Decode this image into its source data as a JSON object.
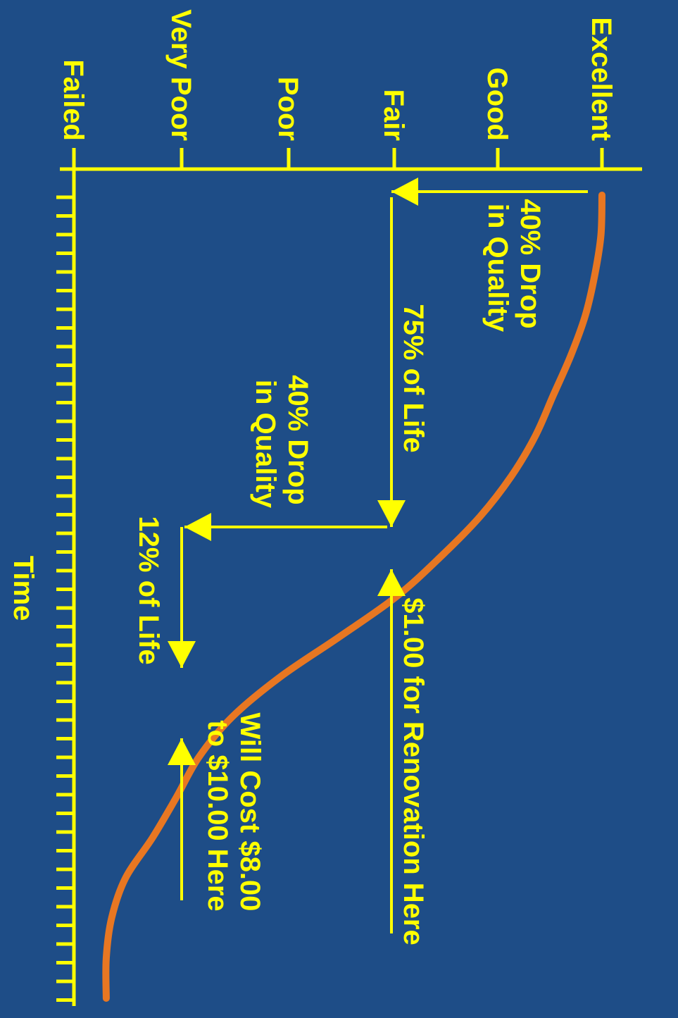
{
  "colors": {
    "background": "#1e4d87",
    "axis": "#ffff00",
    "curve": "#e87722",
    "text": "#ffff00",
    "arrow": "#ffff00"
  },
  "chart_data": {
    "type": "line",
    "orientation": "rotated 90 degrees clockwise",
    "xlabel": "Time",
    "ylabel": "",
    "x_ticks_shown": true,
    "x_tick_labels_printed": false,
    "condition_levels": [
      "Failed",
      "Very Poor",
      "Poor",
      "Fair",
      "Good",
      "Excellent"
    ],
    "series": [
      {
        "points": [
          {
            "time": 0.0,
            "condition": 5.0
          },
          {
            "time": 0.05,
            "condition": 4.99
          },
          {
            "time": 0.1,
            "condition": 4.93
          },
          {
            "time": 0.15,
            "condition": 4.84
          },
          {
            "time": 0.2,
            "condition": 4.7
          },
          {
            "time": 0.25,
            "condition": 4.53
          },
          {
            "time": 0.3,
            "condition": 4.36
          },
          {
            "time": 0.35,
            "condition": 4.13
          },
          {
            "time": 0.4,
            "condition": 3.83
          },
          {
            "time": 0.45,
            "condition": 3.45
          },
          {
            "time": 0.5,
            "condition": 3.02
          },
          {
            "time": 0.55,
            "condition": 2.48
          },
          {
            "time": 0.6,
            "condition": 1.92
          },
          {
            "time": 0.65,
            "condition": 1.47
          },
          {
            "time": 0.7,
            "condition": 1.16
          },
          {
            "time": 0.75,
            "condition": 0.95
          },
          {
            "time": 0.8,
            "condition": 0.73
          },
          {
            "time": 0.85,
            "condition": 0.48
          },
          {
            "time": 0.9,
            "condition": 0.35
          },
          {
            "time": 0.95,
            "condition": 0.3
          },
          {
            "time": 1.0,
            "condition": 0.3
          }
        ]
      }
    ],
    "annotations": [
      {
        "line1": "40% Drop",
        "line2": "in Quality"
      },
      {
        "line1": "75% of Life"
      },
      {
        "line1": "40% Drop",
        "line2": "in Quality"
      },
      {
        "line1": "12% of Life"
      },
      {
        "line1": "$1.00 for Renovation Here"
      },
      {
        "line1": "Will Cost $8.00",
        "line2": "to $10.00 Here"
      }
    ]
  }
}
